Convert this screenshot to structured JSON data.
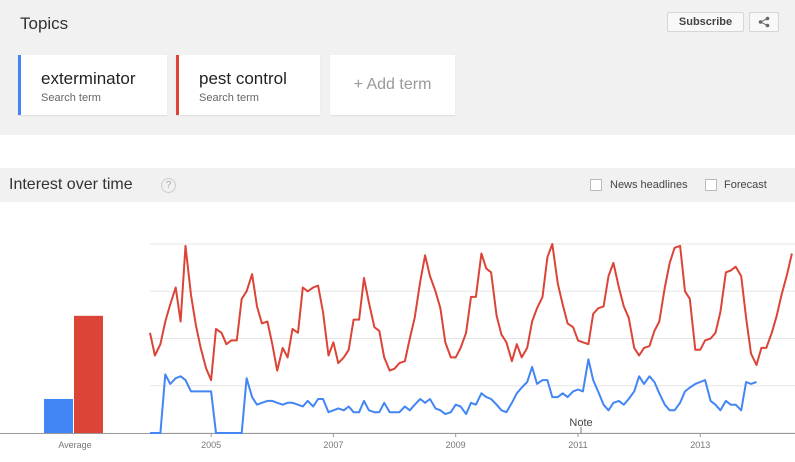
{
  "topics": {
    "title": "Topics",
    "subscribe_label": "Subscribe",
    "share_icon": "share-icon",
    "terms": [
      {
        "name": "exterminator",
        "subtitle": "Search term",
        "color": "#4285f4"
      },
      {
        "name": "pest control",
        "subtitle": "Search term",
        "color": "#db4437"
      }
    ],
    "add_term_label": "+ Add term"
  },
  "interest": {
    "title": "Interest over time",
    "help_icon": "?",
    "news_headlines_label": "News headlines",
    "forecast_label": "Forecast"
  },
  "chart_data": {
    "type": "line",
    "title": "",
    "x_tick_labels": [
      "2005",
      "2007",
      "2009",
      "2011",
      "2013"
    ],
    "x_ticks_years": [
      2005,
      2007,
      2009,
      2011,
      2013
    ],
    "xlim": [
      2004.0,
      2014.55
    ],
    "ylim": [
      0,
      100
    ],
    "grid": true,
    "annotation": "Note",
    "annotation_x": 2011.05,
    "average": {
      "label": "Average",
      "values": [
        18,
        62
      ]
    },
    "series": [
      {
        "name": "pest control",
        "color": "#db4437",
        "points": [
          [
            2004.0,
            53
          ],
          [
            2004.08,
            41
          ],
          [
            2004.17,
            47
          ],
          [
            2004.25,
            59
          ],
          [
            2004.33,
            68
          ],
          [
            2004.42,
            77
          ],
          [
            2004.5,
            59
          ],
          [
            2004.58,
            99
          ],
          [
            2004.67,
            73
          ],
          [
            2004.75,
            57
          ],
          [
            2004.83,
            45
          ],
          [
            2004.92,
            34
          ],
          [
            2005.0,
            28
          ],
          [
            2005.08,
            55
          ],
          [
            2005.17,
            53
          ],
          [
            2005.25,
            47
          ],
          [
            2005.33,
            49
          ],
          [
            2005.42,
            49
          ],
          [
            2005.5,
            71
          ],
          [
            2005.58,
            75
          ],
          [
            2005.67,
            84
          ],
          [
            2005.75,
            67
          ],
          [
            2005.83,
            58
          ],
          [
            2005.92,
            59
          ],
          [
            2006.0,
            47
          ],
          [
            2006.08,
            33
          ],
          [
            2006.17,
            45
          ],
          [
            2006.25,
            40
          ],
          [
            2006.33,
            55
          ],
          [
            2006.42,
            53
          ],
          [
            2006.5,
            77
          ],
          [
            2006.58,
            75
          ],
          [
            2006.67,
            77
          ],
          [
            2006.75,
            78
          ],
          [
            2006.83,
            64
          ],
          [
            2006.92,
            41
          ],
          [
            2007.0,
            48
          ],
          [
            2007.08,
            37
          ],
          [
            2007.17,
            40
          ],
          [
            2007.25,
            44
          ],
          [
            2007.33,
            60
          ],
          [
            2007.42,
            60
          ],
          [
            2007.5,
            82
          ],
          [
            2007.58,
            69
          ],
          [
            2007.67,
            56
          ],
          [
            2007.75,
            54
          ],
          [
            2007.83,
            40
          ],
          [
            2007.92,
            33
          ],
          [
            2008.0,
            34
          ],
          [
            2008.08,
            37
          ],
          [
            2008.17,
            38
          ],
          [
            2008.25,
            50
          ],
          [
            2008.33,
            61
          ],
          [
            2008.42,
            80
          ],
          [
            2008.5,
            94
          ],
          [
            2008.58,
            83
          ],
          [
            2008.67,
            75
          ],
          [
            2008.75,
            66
          ],
          [
            2008.83,
            48
          ],
          [
            2008.92,
            40
          ],
          [
            2009.0,
            40
          ],
          [
            2009.08,
            45
          ],
          [
            2009.17,
            53
          ],
          [
            2009.25,
            72
          ],
          [
            2009.33,
            72
          ],
          [
            2009.42,
            95
          ],
          [
            2009.5,
            87
          ],
          [
            2009.58,
            85
          ],
          [
            2009.67,
            62
          ],
          [
            2009.75,
            52
          ],
          [
            2009.83,
            48
          ],
          [
            2009.92,
            38
          ],
          [
            2010.0,
            47
          ],
          [
            2010.08,
            40
          ],
          [
            2010.17,
            45
          ],
          [
            2010.25,
            59
          ],
          [
            2010.33,
            66
          ],
          [
            2010.42,
            72
          ],
          [
            2010.5,
            93
          ],
          [
            2010.58,
            100
          ],
          [
            2010.67,
            79
          ],
          [
            2010.75,
            68
          ],
          [
            2010.83,
            58
          ],
          [
            2010.92,
            56
          ],
          [
            2011.0,
            49
          ],
          [
            2011.08,
            48
          ],
          [
            2011.17,
            47
          ],
          [
            2011.25,
            63
          ],
          [
            2011.33,
            66
          ],
          [
            2011.42,
            67
          ],
          [
            2011.5,
            83
          ],
          [
            2011.58,
            90
          ],
          [
            2011.67,
            77
          ],
          [
            2011.75,
            67
          ],
          [
            2011.83,
            61
          ],
          [
            2011.92,
            45
          ],
          [
            2012.0,
            41
          ],
          [
            2012.08,
            45
          ],
          [
            2012.17,
            46
          ],
          [
            2012.25,
            54
          ],
          [
            2012.33,
            59
          ],
          [
            2012.42,
            77
          ],
          [
            2012.5,
            90
          ],
          [
            2012.58,
            98
          ],
          [
            2012.67,
            99
          ],
          [
            2012.75,
            75
          ],
          [
            2012.83,
            71
          ],
          [
            2012.92,
            44
          ],
          [
            2013.0,
            44
          ],
          [
            2013.08,
            49
          ],
          [
            2013.17,
            50
          ],
          [
            2013.25,
            53
          ],
          [
            2013.33,
            64
          ],
          [
            2013.42,
            85
          ],
          [
            2013.5,
            86
          ],
          [
            2013.58,
            88
          ],
          [
            2013.67,
            83
          ],
          [
            2013.75,
            61
          ],
          [
            2013.83,
            42
          ],
          [
            2013.92,
            36
          ],
          [
            2014.0,
            45
          ],
          [
            2014.08,
            45
          ],
          [
            2014.17,
            53
          ],
          [
            2014.25,
            62
          ],
          [
            2014.33,
            73
          ],
          [
            2014.42,
            84
          ],
          [
            2014.5,
            95
          ]
        ]
      },
      {
        "name": "exterminator",
        "color": "#4285f4",
        "points": [
          [
            2004.0,
            0
          ],
          [
            2004.08,
            0
          ],
          [
            2004.17,
            0
          ],
          [
            2004.25,
            31
          ],
          [
            2004.33,
            26
          ],
          [
            2004.42,
            29
          ],
          [
            2004.5,
            30
          ],
          [
            2004.58,
            28
          ],
          [
            2004.67,
            22
          ],
          [
            2004.75,
            22
          ],
          [
            2004.83,
            22
          ],
          [
            2004.92,
            22
          ],
          [
            2005.0,
            22
          ],
          [
            2005.08,
            0
          ],
          [
            2005.17,
            0
          ],
          [
            2005.25,
            0
          ],
          [
            2005.33,
            0
          ],
          [
            2005.42,
            0
          ],
          [
            2005.5,
            0
          ],
          [
            2005.58,
            29
          ],
          [
            2005.67,
            19
          ],
          [
            2005.75,
            15
          ],
          [
            2005.83,
            16
          ],
          [
            2005.92,
            17
          ],
          [
            2006.0,
            17
          ],
          [
            2006.08,
            16
          ],
          [
            2006.17,
            15
          ],
          [
            2006.25,
            16
          ],
          [
            2006.33,
            16
          ],
          [
            2006.42,
            15
          ],
          [
            2006.5,
            14
          ],
          [
            2006.58,
            17
          ],
          [
            2006.67,
            14
          ],
          [
            2006.75,
            18
          ],
          [
            2006.83,
            18
          ],
          [
            2006.92,
            11
          ],
          [
            2007.0,
            12
          ],
          [
            2007.08,
            13
          ],
          [
            2007.17,
            12
          ],
          [
            2007.25,
            14
          ],
          [
            2007.33,
            11
          ],
          [
            2007.42,
            11
          ],
          [
            2007.5,
            17
          ],
          [
            2007.58,
            12
          ],
          [
            2007.67,
            11
          ],
          [
            2007.75,
            11
          ],
          [
            2007.83,
            16
          ],
          [
            2007.92,
            11
          ],
          [
            2008.0,
            11
          ],
          [
            2008.08,
            11
          ],
          [
            2008.17,
            14
          ],
          [
            2008.25,
            12
          ],
          [
            2008.33,
            15
          ],
          [
            2008.42,
            18
          ],
          [
            2008.5,
            16
          ],
          [
            2008.58,
            18
          ],
          [
            2008.67,
            13
          ],
          [
            2008.75,
            12
          ],
          [
            2008.83,
            10
          ],
          [
            2008.92,
            11
          ],
          [
            2009.0,
            15
          ],
          [
            2009.08,
            14
          ],
          [
            2009.17,
            10
          ],
          [
            2009.25,
            16
          ],
          [
            2009.33,
            15
          ],
          [
            2009.42,
            21
          ],
          [
            2009.5,
            19
          ],
          [
            2009.58,
            18
          ],
          [
            2009.67,
            15
          ],
          [
            2009.75,
            12
          ],
          [
            2009.83,
            11
          ],
          [
            2009.92,
            16
          ],
          [
            2010.0,
            21
          ],
          [
            2010.08,
            24
          ],
          [
            2010.17,
            27
          ],
          [
            2010.25,
            35
          ],
          [
            2010.33,
            26
          ],
          [
            2010.42,
            28
          ],
          [
            2010.5,
            28
          ],
          [
            2010.58,
            19
          ],
          [
            2010.67,
            19
          ],
          [
            2010.75,
            21
          ],
          [
            2010.83,
            19
          ],
          [
            2010.92,
            22
          ],
          [
            2011.0,
            23
          ],
          [
            2011.08,
            22
          ],
          [
            2011.17,
            39
          ],
          [
            2011.25,
            28
          ],
          [
            2011.33,
            22
          ],
          [
            2011.42,
            15
          ],
          [
            2011.5,
            12
          ],
          [
            2011.58,
            16
          ],
          [
            2011.67,
            17
          ],
          [
            2011.75,
            15
          ],
          [
            2011.83,
            18
          ],
          [
            2011.92,
            22
          ],
          [
            2012.0,
            30
          ],
          [
            2012.08,
            26
          ],
          [
            2012.17,
            30
          ],
          [
            2012.25,
            27
          ],
          [
            2012.33,
            21
          ],
          [
            2012.42,
            15
          ],
          [
            2012.5,
            12
          ],
          [
            2012.58,
            12
          ],
          [
            2012.67,
            16
          ],
          [
            2012.75,
            22
          ],
          [
            2012.83,
            24
          ],
          [
            2012.92,
            26
          ],
          [
            2013.0,
            27
          ],
          [
            2013.08,
            28
          ],
          [
            2013.17,
            17
          ],
          [
            2013.25,
            15
          ],
          [
            2013.33,
            12
          ],
          [
            2013.42,
            17
          ],
          [
            2013.5,
            15
          ],
          [
            2013.58,
            15
          ],
          [
            2013.67,
            12
          ],
          [
            2013.75,
            27
          ],
          [
            2013.83,
            26
          ],
          [
            2013.92,
            27
          ]
        ]
      }
    ]
  }
}
